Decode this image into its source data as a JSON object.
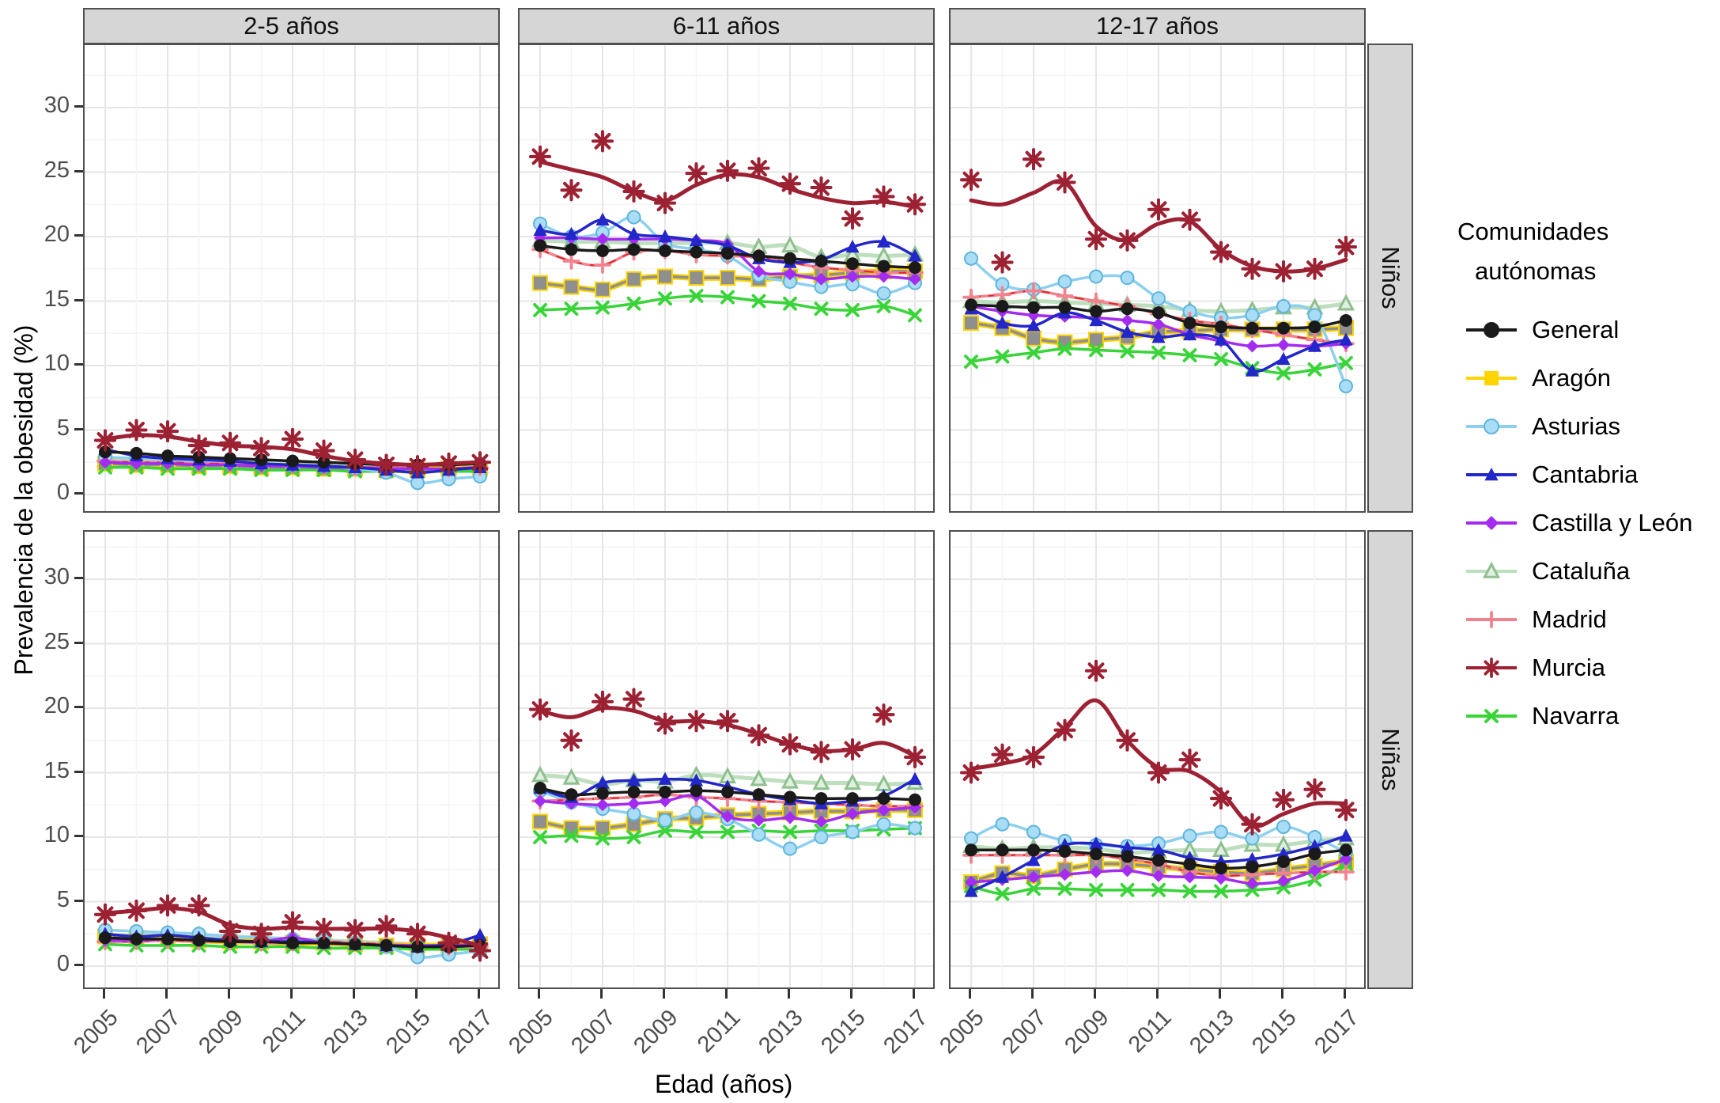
{
  "figure": {
    "ylabel": "Prevalencia de la obesidad (%)",
    "xlabel": "Edad (años)",
    "legend_title_line1": "Comunidades",
    "legend_title_line2": "autónomas"
  },
  "chart_data": {
    "type": "line",
    "x": [
      2005,
      2006,
      2007,
      2008,
      2009,
      2010,
      2011,
      2012,
      2013,
      2014,
      2015,
      2016,
      2017
    ],
    "x_ticks": [
      2005,
      2007,
      2009,
      2011,
      2013,
      2015,
      2017
    ],
    "y_ticks": [
      0,
      5,
      10,
      15,
      20,
      25,
      30
    ],
    "ylim": [
      -1.5,
      34.5
    ],
    "xlabel": "Edad (años)",
    "ylabel": "Prevalencia de la obesidad (%)",
    "grid": true,
    "legend_position": "right",
    "col_labels": [
      "2-5 años",
      "6-11 años",
      "12-17 años"
    ],
    "row_labels": [
      "Niños",
      "Niñas"
    ],
    "series": [
      {
        "key": "cataluna",
        "label": "Cataluña",
        "color": "#BEDFBE",
        "marker": "tri-open",
        "mstroke": "#8FBF8F",
        "mfill": "#DFF0DF",
        "width": 5,
        "msize": 9
      },
      {
        "key": "aragon",
        "label": "Aragón",
        "color": "#8F8F8F",
        "legend_color": "#FFD400",
        "under": "#FFD400",
        "marker": "square",
        "msize": 8
      },
      {
        "key": "navarra",
        "label": "Navarra",
        "color": "#38D438",
        "marker": "x",
        "msize": 9
      },
      {
        "key": "asturias",
        "label": "Asturias",
        "color": "#8CCFEE",
        "marker": "dot",
        "mfill": "#A9DDF5",
        "mstroke": "#5FB5DC",
        "msize": 8
      },
      {
        "key": "madrid",
        "label": "Madrid",
        "color": "#F2828E",
        "overlay": "#DD2A2A",
        "marker": "plus",
        "msize": 9
      },
      {
        "key": "castilla",
        "label": "Castilla y León",
        "color": "#A42CF0",
        "marker": "diamond",
        "msize": 8
      },
      {
        "key": "cantabria",
        "label": "Cantabria",
        "color": "#2326C9",
        "marker": "tri",
        "msize": 9
      },
      {
        "key": "general",
        "label": "General",
        "color": "#1A1A1A",
        "marker": "dot",
        "msize": 7
      },
      {
        "key": "murcia",
        "label": "Murcia",
        "color": "#9C2133",
        "marker": "ast",
        "width": 5,
        "msize": 12
      }
    ],
    "legend_order": [
      "general",
      "aragon",
      "asturias",
      "cantabria",
      "castilla",
      "cataluna",
      "madrid",
      "murcia",
      "navarra"
    ],
    "facets": [
      {
        "row": 0,
        "col": 0,
        "age": "2-5 años",
        "sex": "Niños",
        "values": {
          "general": [
            3.3,
            3.2,
            3.0,
            2.9,
            2.8,
            2.7,
            2.6,
            2.5,
            2.4,
            2.3,
            2.3,
            2.3,
            2.4
          ],
          "aragon": [
            2.4,
            2.3,
            2.3,
            2.2,
            2.2,
            2.1,
            2.1,
            2.0,
            2.0,
            1.9,
            1.9,
            2.0,
            2.0
          ],
          "asturias": [
            2.9,
            2.8,
            2.7,
            2.6,
            2.5,
            2.4,
            2.3,
            2.2,
            2.0,
            1.7,
            0.9,
            1.2,
            1.4
          ],
          "cantabria": [
            3.5,
            3.0,
            2.8,
            2.7,
            2.6,
            2.4,
            2.3,
            2.2,
            2.1,
            1.9,
            1.7,
            1.9,
            2.1
          ],
          "castilla": [
            2.5,
            2.4,
            2.4,
            2.3,
            2.3,
            2.2,
            2.2,
            2.1,
            2.1,
            2.0,
            2.0,
            2.0,
            2.1
          ],
          "cataluna": [
            2.7,
            2.7,
            2.6,
            2.6,
            2.5,
            2.5,
            2.4,
            2.3,
            2.2,
            2.2,
            2.1,
            2.1,
            2.2
          ],
          "madrid": [
            2.6,
            2.5,
            2.5,
            2.4,
            2.4,
            2.3,
            2.3,
            2.2,
            2.1,
            2.1,
            2.0,
            2.0,
            2.1
          ],
          "murcia": [
            4.3,
            4.6,
            4.5,
            4.1,
            3.8,
            3.7,
            3.5,
            3.0,
            2.6,
            2.4,
            2.3,
            2.4,
            2.5
          ],
          "murcia_pts": [
            4.2,
            5.0,
            4.9,
            3.8,
            4.0,
            3.6,
            4.3,
            3.4,
            2.7,
            2.3,
            2.2,
            2.4,
            2.5
          ],
          "navarra": [
            2.1,
            2.1,
            2.0,
            2.0,
            2.0,
            1.9,
            1.9,
            1.9,
            1.8,
            1.8,
            1.8,
            1.8,
            1.8
          ]
        }
      },
      {
        "row": 0,
        "col": 1,
        "age": "6-11 años",
        "sex": "Niños",
        "values": {
          "general": [
            19.3,
            19.0,
            18.9,
            19.0,
            18.9,
            18.8,
            18.7,
            18.5,
            18.3,
            18.1,
            17.9,
            17.7,
            17.6
          ],
          "aragon": [
            16.4,
            16.1,
            15.9,
            16.7,
            16.9,
            16.8,
            16.8,
            16.7,
            16.9,
            17.0,
            17.2,
            17.3,
            17.3
          ],
          "asturias": [
            21.0,
            20.0,
            20.3,
            21.5,
            19.5,
            19.0,
            18.5,
            17.0,
            16.5,
            16.1,
            16.3,
            15.6,
            16.4
          ],
          "cantabria": [
            20.5,
            20.2,
            21.3,
            20.2,
            20.0,
            19.7,
            19.3,
            18.3,
            18.0,
            18.2,
            19.2,
            19.6,
            18.5
          ],
          "castilla": [
            19.9,
            19.9,
            19.8,
            19.8,
            19.8,
            19.7,
            19.4,
            17.3,
            17.1,
            16.7,
            16.9,
            16.9,
            16.7
          ],
          "cataluna": [
            19.7,
            19.6,
            19.6,
            19.5,
            19.5,
            19.5,
            19.5,
            19.2,
            19.3,
            18.4,
            18.6,
            18.5,
            18.6
          ],
          "madrid": [
            19.0,
            18.1,
            17.8,
            18.8,
            18.9,
            18.6,
            18.5,
            18.4,
            18.0,
            17.6,
            17.4,
            17.2,
            17.2
          ],
          "murcia": [
            25.8,
            25.2,
            24.6,
            23.5,
            22.8,
            24.0,
            24.8,
            24.6,
            23.7,
            23.0,
            22.6,
            22.7,
            22.3
          ],
          "murcia_pts": [
            26.2,
            23.6,
            27.4,
            23.5,
            22.6,
            24.9,
            25.1,
            25.3,
            24.1,
            23.8,
            21.4,
            23.1,
            22.5
          ],
          "navarra": [
            14.3,
            14.4,
            14.5,
            14.8,
            15.2,
            15.4,
            15.3,
            15.0,
            14.8,
            14.4,
            14.3,
            14.6,
            13.9
          ]
        }
      },
      {
        "row": 0,
        "col": 2,
        "age": "12-17 años",
        "sex": "Niños",
        "values": {
          "general": [
            14.7,
            14.6,
            14.5,
            14.5,
            14.2,
            14.4,
            14.1,
            13.3,
            13.0,
            12.9,
            12.9,
            13.0,
            13.5
          ],
          "aragon": [
            13.3,
            12.9,
            12.1,
            11.8,
            12.0,
            12.2,
            12.6,
            12.7,
            12.8,
            12.8,
            12.8,
            12.8,
            12.9
          ],
          "asturias": [
            18.3,
            16.3,
            15.9,
            16.5,
            16.9,
            16.8,
            15.2,
            14.2,
            13.7,
            13.9,
            14.6,
            13.9,
            8.4
          ],
          "cantabria": [
            14.4,
            13.3,
            13.1,
            14.1,
            13.5,
            12.6,
            12.2,
            12.4,
            12.0,
            9.6,
            10.5,
            11.5,
            12.0
          ],
          "castilla": [
            14.6,
            14.2,
            13.9,
            13.8,
            13.7,
            13.5,
            13.2,
            12.4,
            11.9,
            11.5,
            11.6,
            11.5,
            11.7
          ],
          "cataluna": [
            15.0,
            14.9,
            15.0,
            14.9,
            14.8,
            14.7,
            14.6,
            14.3,
            14.2,
            14.3,
            14.5,
            14.5,
            14.8
          ],
          "madrid": [
            15.3,
            15.5,
            15.8,
            15.4,
            15.0,
            14.6,
            14.0,
            13.5,
            13.2,
            12.8,
            12.4,
            12.0,
            11.7
          ],
          "murcia": [
            22.8,
            22.5,
            23.4,
            24.2,
            20.8,
            19.7,
            21.0,
            21.2,
            19.0,
            17.7,
            17.3,
            17.5,
            18.2
          ],
          "murcia_pts": [
            24.4,
            18.0,
            26.0,
            24.2,
            19.8,
            19.7,
            22.1,
            21.3,
            18.8,
            17.5,
            17.3,
            17.5,
            19.2
          ],
          "navarra": [
            10.3,
            10.7,
            11.0,
            11.3,
            11.2,
            11.1,
            11.0,
            10.8,
            10.5,
            9.8,
            9.4,
            9.7,
            10.2
          ]
        }
      },
      {
        "row": 1,
        "col": 0,
        "age": "2-5 años",
        "sex": "Niñas",
        "values": {
          "general": [
            2.2,
            2.1,
            2.1,
            2.0,
            1.9,
            1.9,
            1.8,
            1.8,
            1.7,
            1.6,
            1.5,
            1.5,
            1.6
          ],
          "aragon": [
            2.3,
            2.2,
            2.1,
            2.0,
            1.9,
            1.9,
            1.8,
            1.8,
            1.7,
            1.6,
            1.6,
            1.6,
            1.7
          ],
          "asturias": [
            2.8,
            2.7,
            2.6,
            2.5,
            2.3,
            2.2,
            2.1,
            2.0,
            1.8,
            1.5,
            0.7,
            0.9,
            1.2
          ],
          "cantabria": [
            2.5,
            2.3,
            2.4,
            2.2,
            2.0,
            1.9,
            1.9,
            1.8,
            1.7,
            1.6,
            1.5,
            1.7,
            2.4
          ],
          "castilla": [
            2.0,
            2.0,
            2.1,
            2.0,
            1.9,
            1.9,
            2.2,
            1.8,
            1.7,
            1.6,
            1.6,
            1.6,
            1.7
          ],
          "cataluna": [
            2.4,
            2.4,
            2.5,
            2.4,
            2.3,
            2.2,
            2.1,
            2.0,
            1.9,
            1.8,
            1.7,
            1.6,
            1.7
          ],
          "madrid": [
            1.9,
            1.9,
            2.0,
            1.9,
            1.9,
            1.8,
            1.8,
            1.9,
            1.8,
            1.7,
            1.6,
            1.5,
            1.5
          ],
          "murcia": [
            4.1,
            4.3,
            4.5,
            4.2,
            3.2,
            2.9,
            3.0,
            2.9,
            2.9,
            2.9,
            2.7,
            2.2,
            1.6
          ],
          "murcia_pts": [
            4.0,
            4.3,
            4.7,
            4.7,
            2.7,
            2.5,
            3.4,
            2.9,
            2.8,
            3.1,
            2.5,
            1.8,
            1.2
          ],
          "navarra": [
            1.7,
            1.6,
            1.6,
            1.6,
            1.5,
            1.5,
            1.5,
            1.4,
            1.4,
            1.4,
            1.3,
            1.3,
            1.3
          ]
        }
      },
      {
        "row": 1,
        "col": 1,
        "age": "6-11 años",
        "sex": "Niñas",
        "values": {
          "general": [
            13.8,
            13.3,
            13.4,
            13.5,
            13.5,
            13.6,
            13.5,
            13.3,
            13.1,
            13.0,
            13.0,
            13.0,
            12.9
          ],
          "aragon": [
            11.2,
            10.7,
            10.7,
            11.0,
            11.4,
            11.5,
            11.7,
            11.8,
            11.9,
            12.0,
            12.0,
            12.1,
            12.1
          ],
          "asturias": [
            13.6,
            12.7,
            12.2,
            11.8,
            11.3,
            11.9,
            11.4,
            10.2,
            9.1,
            10.0,
            10.4,
            11.0,
            10.7
          ],
          "cantabria": [
            13.8,
            13.1,
            14.2,
            14.4,
            14.5,
            14.4,
            13.9,
            13.3,
            12.9,
            12.6,
            12.8,
            13.2,
            14.5
          ],
          "castilla": [
            12.8,
            12.6,
            12.5,
            12.6,
            12.8,
            13.2,
            11.6,
            11.3,
            11.5,
            11.2,
            11.8,
            12.1,
            12.3
          ],
          "cataluna": [
            14.8,
            14.6,
            14.1,
            14.4,
            14.3,
            14.8,
            14.7,
            14.5,
            14.3,
            14.2,
            14.2,
            14.1,
            14.2
          ],
          "madrid": [
            12.8,
            12.9,
            13.0,
            13.1,
            13.3,
            13.1,
            13.0,
            12.8,
            12.7,
            12.6,
            12.5,
            12.4,
            12.4
          ],
          "murcia": [
            19.8,
            19.3,
            20.0,
            19.8,
            19.0,
            19.0,
            18.7,
            18.0,
            17.2,
            16.7,
            16.8,
            17.3,
            16.3
          ],
          "murcia_pts": [
            19.9,
            17.5,
            20.5,
            20.7,
            18.8,
            19.0,
            19.0,
            17.9,
            17.2,
            16.6,
            16.8,
            19.5,
            16.2
          ],
          "navarra": [
            10.0,
            10.1,
            9.9,
            10.0,
            10.5,
            10.4,
            10.4,
            10.5,
            10.4,
            10.5,
            10.5,
            10.6,
            10.7
          ]
        }
      },
      {
        "row": 1,
        "col": 2,
        "age": "12-17 años",
        "sex": "Niñas",
        "values": {
          "general": [
            9.0,
            9.0,
            9.0,
            8.9,
            8.7,
            8.5,
            8.2,
            7.9,
            7.6,
            7.7,
            8.1,
            8.7,
            9.0
          ],
          "aragon": [
            6.5,
            7.2,
            7.0,
            7.5,
            7.9,
            7.9,
            7.7,
            7.5,
            7.3,
            7.2,
            7.5,
            7.8,
            8.1
          ],
          "asturias": [
            9.9,
            11.0,
            10.4,
            9.7,
            9.4,
            9.3,
            9.5,
            10.1,
            10.4,
            9.9,
            10.8,
            10.0,
            8.8
          ],
          "cantabria": [
            5.8,
            6.9,
            8.2,
            9.4,
            9.5,
            9.2,
            9.0,
            8.4,
            8.1,
            8.3,
            8.7,
            9.3,
            10.1
          ],
          "castilla": [
            6.5,
            6.7,
            6.9,
            7.1,
            7.3,
            7.4,
            7.0,
            6.9,
            6.8,
            6.4,
            6.6,
            7.4,
            8.3
          ],
          "cataluna": [
            9.3,
            9.1,
            9.2,
            9.2,
            9.1,
            8.8,
            8.9,
            9.0,
            9.0,
            9.4,
            9.4,
            9.7,
            9.9
          ],
          "madrid": [
            8.6,
            8.6,
            8.6,
            8.6,
            8.6,
            8.3,
            7.9,
            7.3,
            7.0,
            7.1,
            7.2,
            7.3,
            7.3
          ],
          "murcia": [
            15.3,
            15.7,
            16.4,
            18.5,
            20.6,
            17.5,
            15.4,
            15.1,
            13.5,
            10.9,
            11.8,
            12.6,
            12.6
          ],
          "murcia_pts": [
            15.0,
            16.4,
            16.2,
            18.3,
            22.9,
            17.5,
            15.0,
            16.0,
            13.0,
            11.0,
            12.9,
            13.7,
            12.1
          ],
          "navarra": [
            6.2,
            5.6,
            6.0,
            6.0,
            5.9,
            5.9,
            5.9,
            5.8,
            5.8,
            5.9,
            6.1,
            6.7,
            7.9
          ]
        }
      }
    ]
  }
}
